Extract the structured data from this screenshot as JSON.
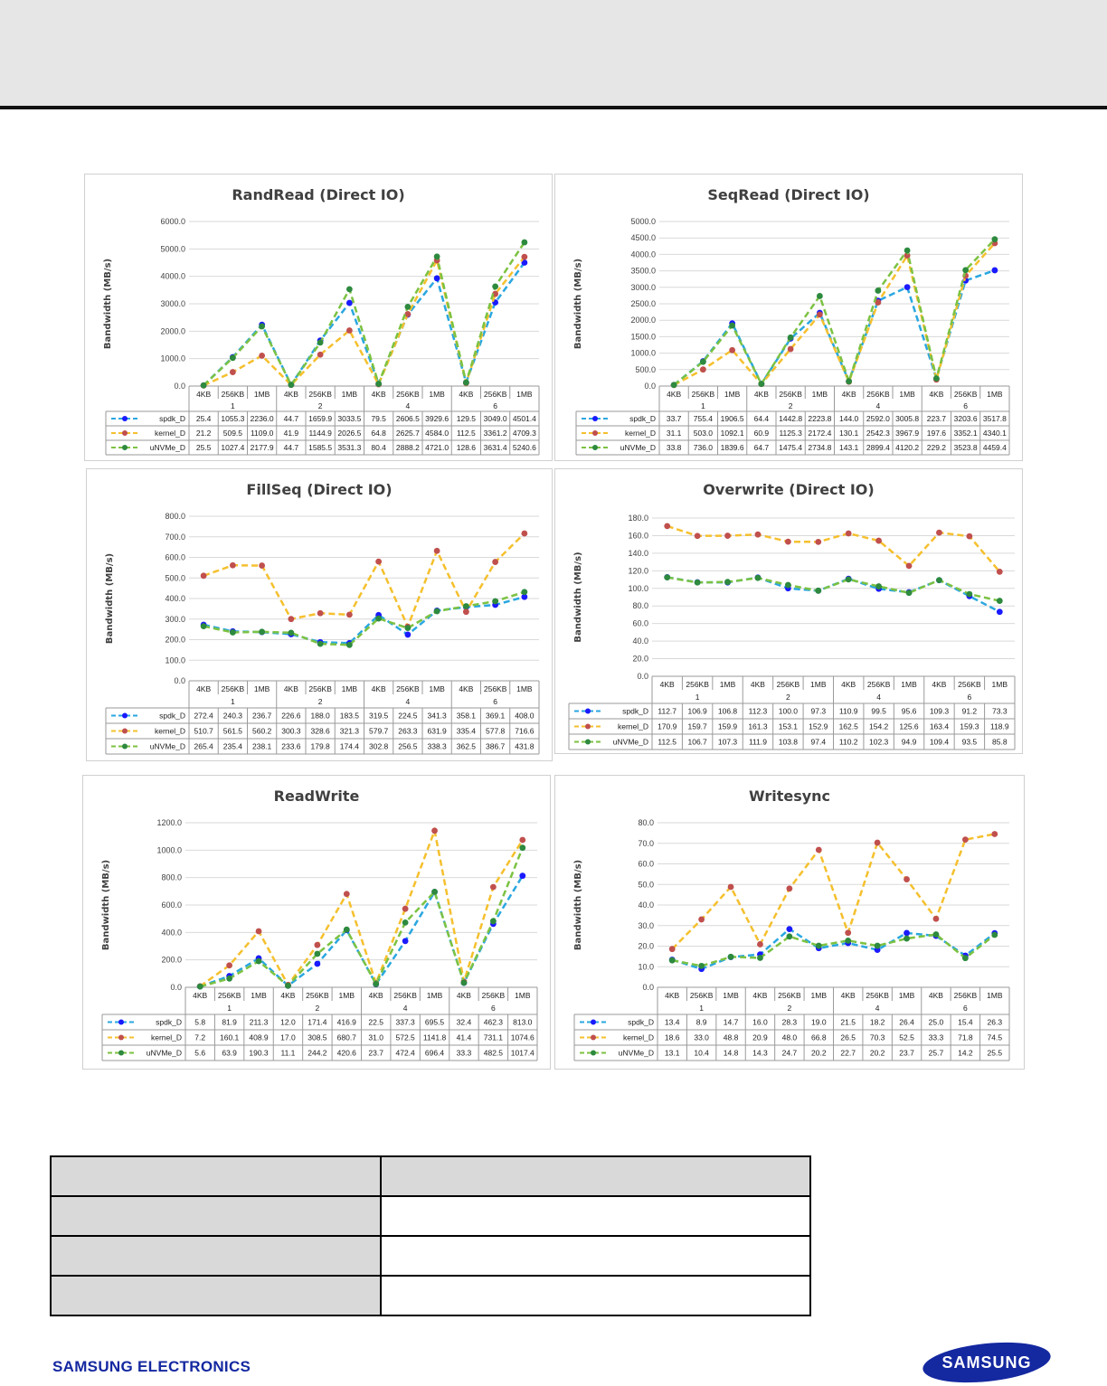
{
  "footer": {
    "company": "SAMSUNG ELECTRONICS",
    "logo_text": "SAMSUNG"
  },
  "colors": {
    "spdk_D": "#2aa7e0",
    "kernel_D": "#f5c02e",
    "uNVMe_D": "#7cc242",
    "spdk_marker": "#1a1aff",
    "kernel_marker": "#c0504d",
    "uNVMe_marker": "#2d8a3e"
  },
  "chart_data": [
    {
      "type": "line",
      "title": "RandRead (Direct IO)",
      "ylabel": "Bandwidth (MB/s)",
      "ylim": [
        0,
        6000
      ],
      "ytick_step": 1000,
      "grid": true,
      "legend": "table",
      "categories": [
        "4KB",
        "256KB",
        "1MB",
        "4KB",
        "256KB",
        "1MB",
        "4KB",
        "256KB",
        "1MB",
        "4KB",
        "256KB",
        "1MB"
      ],
      "groups": [
        "1",
        "2",
        "4",
        "6"
      ],
      "series": [
        {
          "name": "spdk_D",
          "values": [
            "25.4",
            "1055.3",
            "2236.0",
            "44.7",
            "1659.9",
            "3033.5",
            "79.5",
            "2606.5",
            "3929.6",
            "129.5",
            "3049.0",
            "4501.4"
          ]
        },
        {
          "name": "kernel_D",
          "values": [
            "21.2",
            "509.5",
            "1109.0",
            "41.9",
            "1144.9",
            "2026.5",
            "64.8",
            "2625.7",
            "4584.0",
            "112.5",
            "3361.2",
            "4709.3"
          ]
        },
        {
          "name": "uNVMe_D",
          "values": [
            "25.5",
            "1027.4",
            "2177.9",
            "44.7",
            "1585.5",
            "3531.3",
            "80.4",
            "2888.2",
            "4721.0",
            "128.6",
            "3631.4",
            "5240.6"
          ]
        }
      ]
    },
    {
      "type": "line",
      "title": "SeqRead (Direct IO)",
      "ylabel": "Bandwidth (MB/s)",
      "ylim": [
        0,
        5000
      ],
      "ytick_step": 500,
      "grid": true,
      "legend": "table",
      "categories": [
        "4KB",
        "256KB",
        "1MB",
        "4KB",
        "256KB",
        "1MB",
        "4KB",
        "256KB",
        "1MB",
        "4KB",
        "256KB",
        "1MB"
      ],
      "groups": [
        "1",
        "2",
        "4",
        "6"
      ],
      "series": [
        {
          "name": "spdk_D",
          "values": [
            "33.7",
            "755.4",
            "1906.5",
            "64.4",
            "1442.8",
            "2223.8",
            "144.0",
            "2592.0",
            "3005.8",
            "223.7",
            "3203.6",
            "3517.8"
          ]
        },
        {
          "name": "kernel_D",
          "values": [
            "31.1",
            "503.0",
            "1092.1",
            "60.9",
            "1125.3",
            "2172.4",
            "130.1",
            "2542.3",
            "3967.9",
            "197.6",
            "3352.1",
            "4340.1"
          ]
        },
        {
          "name": "uNVMe_D",
          "values": [
            "33.8",
            "736.0",
            "1839.6",
            "64.7",
            "1475.4",
            "2734.8",
            "143.1",
            "2899.4",
            "4120.2",
            "229.2",
            "3523.8",
            "4459.4"
          ]
        }
      ]
    },
    {
      "type": "line",
      "title": "FillSeq (Direct IO)",
      "ylabel": "Bandwidth (MB/s)",
      "ylim": [
        0,
        800
      ],
      "ytick_step": 100,
      "grid": true,
      "legend": "table",
      "categories": [
        "4KB",
        "256KB",
        "1MB",
        "4KB",
        "256KB",
        "1MB",
        "4KB",
        "256KB",
        "1MB",
        "4KB",
        "256KB",
        "1MB"
      ],
      "groups": [
        "1",
        "2",
        "4",
        "6"
      ],
      "series": [
        {
          "name": "spdk_D",
          "values": [
            "272.4",
            "240.3",
            "236.7",
            "226.6",
            "188.0",
            "183.5",
            "319.5",
            "224.5",
            "341.3",
            "358.1",
            "369.1",
            "408.0"
          ]
        },
        {
          "name": "kernel_D",
          "values": [
            "510.7",
            "561.5",
            "560.2",
            "300.3",
            "328.6",
            "321.3",
            "579.7",
            "263.3",
            "631.9",
            "335.4",
            "577.8",
            "716.6"
          ]
        },
        {
          "name": "uNVMe_D",
          "values": [
            "265.4",
            "235.4",
            "238.1",
            "233.6",
            "179.8",
            "174.4",
            "302.8",
            "256.5",
            "338.3",
            "362.5",
            "386.7",
            "431.8"
          ]
        }
      ]
    },
    {
      "type": "line",
      "title": "Overwrite (Direct IO)",
      "ylabel": "Bandwidth (MB/s)",
      "ylim": [
        0,
        180
      ],
      "ytick_step": 20,
      "grid": true,
      "legend": "table",
      "categories": [
        "4KB",
        "256KB",
        "1MB",
        "4KB",
        "256KB",
        "1MB",
        "4KB",
        "256KB",
        "1MB",
        "4KB",
        "256KB",
        "1MB"
      ],
      "groups": [
        "1",
        "2",
        "4",
        "6"
      ],
      "series": [
        {
          "name": "spdk_D",
          "values": [
            "112.7",
            "106.9",
            "106.8",
            "112.3",
            "100.0",
            "97.3",
            "110.9",
            "99.5",
            "95.6",
            "109.3",
            "91.2",
            "73.3"
          ]
        },
        {
          "name": "kernel_D",
          "values": [
            "170.9",
            "159.7",
            "159.9",
            "161.3",
            "153.1",
            "152.9",
            "162.5",
            "154.2",
            "125.6",
            "163.4",
            "159.3",
            "118.9"
          ]
        },
        {
          "name": "uNVMe_D",
          "values": [
            "112.5",
            "106.7",
            "107.3",
            "111.9",
            "103.8",
            "97.4",
            "110.2",
            "102.3",
            "94.9",
            "109.4",
            "93.5",
            "85.8"
          ]
        }
      ]
    },
    {
      "type": "line",
      "title": "ReadWrite",
      "ylabel": "Bandwidth (MB/s)",
      "ylim": [
        0,
        1200
      ],
      "ytick_step": 200,
      "grid": true,
      "legend": "table",
      "categories": [
        "4KB",
        "256KB",
        "1MB",
        "4KB",
        "256KB",
        "1MB",
        "4KB",
        "256KB",
        "1MB",
        "4KB",
        "256KB",
        "1MB"
      ],
      "groups": [
        "1",
        "2",
        "4",
        "6"
      ],
      "series": [
        {
          "name": "spdk_D",
          "values": [
            "5.8",
            "81.9",
            "211.3",
            "12.0",
            "171.4",
            "416.9",
            "22.5",
            "337.3",
            "695.5",
            "32.4",
            "462.3",
            "813.0"
          ]
        },
        {
          "name": "kernel_D",
          "values": [
            "7.2",
            "160.1",
            "408.9",
            "17.0",
            "308.5",
            "680.7",
            "31.0",
            "572.5",
            "1141.8",
            "41.4",
            "731.1",
            "1074.6"
          ]
        },
        {
          "name": "uNVMe_D",
          "values": [
            "5.6",
            "63.9",
            "190.3",
            "11.1",
            "244.2",
            "420.6",
            "23.7",
            "472.4",
            "696.4",
            "33.3",
            "482.5",
            "1017.4"
          ]
        }
      ]
    },
    {
      "type": "line",
      "title": "Writesync",
      "ylabel": "Bandwidth (MB/s)",
      "ylim": [
        0,
        80
      ],
      "ytick_step": 10,
      "grid": true,
      "legend": "table",
      "categories": [
        "4KB",
        "256KB",
        "1MB",
        "4KB",
        "256KB",
        "1MB",
        "4KB",
        "256KB",
        "1MB",
        "4KB",
        "256KB",
        "1MB"
      ],
      "groups": [
        "1",
        "2",
        "4",
        "6"
      ],
      "series": [
        {
          "name": "spdk_D",
          "values": [
            "13.4",
            "8.9",
            "14.7",
            "16.0",
            "28.3",
            "19.0",
            "21.5",
            "18.2",
            "26.4",
            "25.0",
            "15.4",
            "26.3"
          ]
        },
        {
          "name": "kernel_D",
          "values": [
            "18.6",
            "33.0",
            "48.8",
            "20.9",
            "48.0",
            "66.8",
            "26.5",
            "70.3",
            "52.5",
            "33.3",
            "71.8",
            "74.5"
          ]
        },
        {
          "name": "uNVMe_D",
          "values": [
            "13.1",
            "10.4",
            "14.8",
            "14.3",
            "24.7",
            "20.2",
            "22.7",
            "20.2",
            "23.7",
            "25.7",
            "14.2",
            "25.5"
          ]
        }
      ]
    }
  ]
}
